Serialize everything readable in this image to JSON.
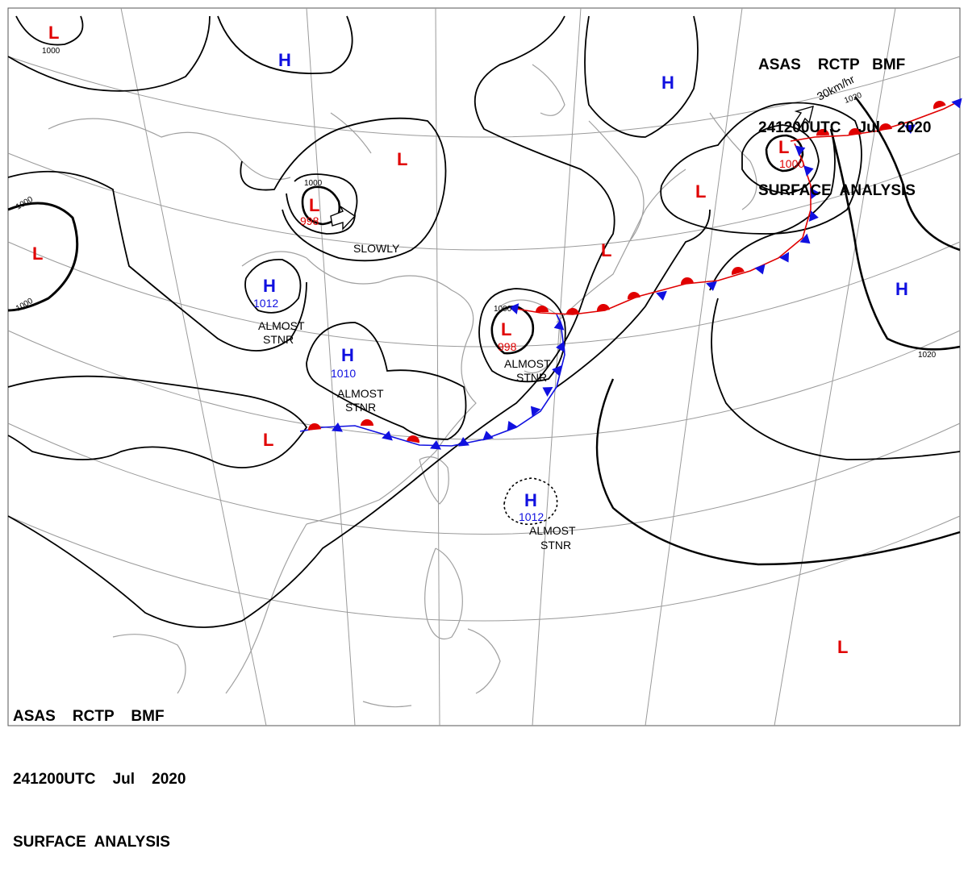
{
  "header_top": {
    "line1": "ASAS    RCTP   BMF",
    "line2": "241200UTC    Jul    2020",
    "line3": "SURFACE  ANALYSIS"
  },
  "header_bottom": {
    "line1": "ASAS    RCTP    BMF",
    "line2": "241200UTC    Jul    2020",
    "line3": "SURFACE  ANALYSIS"
  },
  "colors": {
    "high": "#1010e0",
    "low": "#e00000",
    "isobar": "#000000",
    "grid": "#9a9a9a",
    "coast": "#a0a0a0"
  },
  "high_symbol": "H",
  "low_symbol": "L",
  "pressure_values": {
    "h_central": "1012",
    "h_china": "1010",
    "h_ph": "1012",
    "l_mongolia": "998",
    "l_korea": "998",
    "l_okhotsk": "1000"
  },
  "isobar_labels": {
    "l_topleft": "1000",
    "l_west_top": "1000",
    "l_west_bot": "1000",
    "l_mongolia": "1000",
    "l_korea": "1000",
    "pacific_a": "1020",
    "pacific_b": "1020"
  },
  "annotations": {
    "slowly": "SLOWLY",
    "almost_1": "ALMOST",
    "stnr_1": "STNR",
    "almost_2": "ALMOST",
    "stnr_2": "STNR",
    "almost_3": "ALMOST",
    "stnr_3": "STNR",
    "almost_4": "ALMOST",
    "stnr_4": "STNR",
    "speed": "30km/hr"
  }
}
